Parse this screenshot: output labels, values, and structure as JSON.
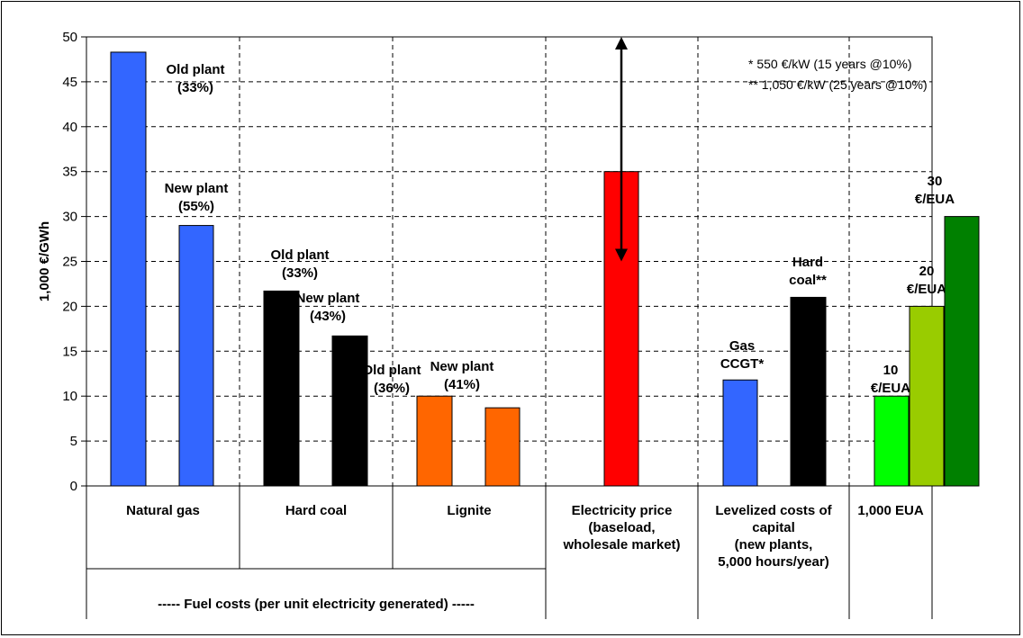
{
  "chart_data": {
    "type": "bar",
    "ylabel": "1,000 €/GWh",
    "ylim": [
      0,
      50
    ],
    "yticks": [
      "0",
      "5",
      "10",
      "15",
      "20",
      "25",
      "30",
      "35",
      "40",
      "45",
      "50"
    ],
    "grid": true,
    "notes": [
      "*    550 €/kW (15 years @10%)",
      "** 1,050 €/kW (25 years @10%)"
    ],
    "groups": [
      {
        "label_lines": [
          "Natural gas"
        ]
      },
      {
        "label_lines": [
          "Hard coal"
        ]
      },
      {
        "label_lines": [
          "Lignite"
        ]
      },
      {
        "label_lines": [
          "Electricity price",
          "(baseload,",
          "wholesale market)"
        ]
      },
      {
        "label_lines": [
          "Levelized costs of",
          "capital",
          "(new plants,",
          "5,000 hours/year)"
        ]
      },
      {
        "label_lines": [
          "1,000 EUA"
        ]
      }
    ],
    "fuel_costs_label": "----- Fuel costs (per unit electricity generated) -----",
    "bars": [
      {
        "group": 0,
        "value": 48.3,
        "color": "#3366ff",
        "label_lines": [
          "Old plant",
          "(33%)"
        ]
      },
      {
        "group": 0,
        "value": 29.0,
        "color": "#3366ff",
        "label_lines": [
          "New plant",
          "(55%)"
        ]
      },
      {
        "group": 1,
        "value": 21.7,
        "color": "#000000",
        "label_lines": [
          "Old plant",
          "(33%)"
        ]
      },
      {
        "group": 1,
        "value": 16.7,
        "color": "#000000",
        "label_lines": [
          "New plant",
          "(43%)"
        ]
      },
      {
        "group": 2,
        "value": 10.0,
        "color": "#ff6600",
        "label_lines": [
          "Old plant",
          "(36%)"
        ]
      },
      {
        "group": 2,
        "value": 8.7,
        "color": "#ff6600",
        "label_lines": [
          "New plant",
          "(41%)"
        ]
      },
      {
        "group": 3,
        "value": 35.0,
        "color": "#ff0000",
        "label_lines": []
      },
      {
        "group": 4,
        "value": 11.8,
        "color": "#3366ff",
        "label_lines": [
          "Gas",
          "CCGT*"
        ]
      },
      {
        "group": 4,
        "value": 21.0,
        "color": "#000000",
        "label_lines": [
          "Hard",
          "coal**"
        ]
      },
      {
        "group": 5,
        "value": 10.0,
        "color": "#00ff00",
        "label_lines": [
          "10",
          "€/EUA"
        ]
      },
      {
        "group": 5,
        "value": 20.0,
        "color": "#99cc00",
        "label_lines": [
          "20",
          "€/EUA"
        ]
      },
      {
        "group": 5,
        "value": 30.0,
        "color": "#008000",
        "label_lines": [
          "30",
          "€/EUA"
        ]
      }
    ],
    "price_range": {
      "low": 25,
      "high": 50
    }
  }
}
